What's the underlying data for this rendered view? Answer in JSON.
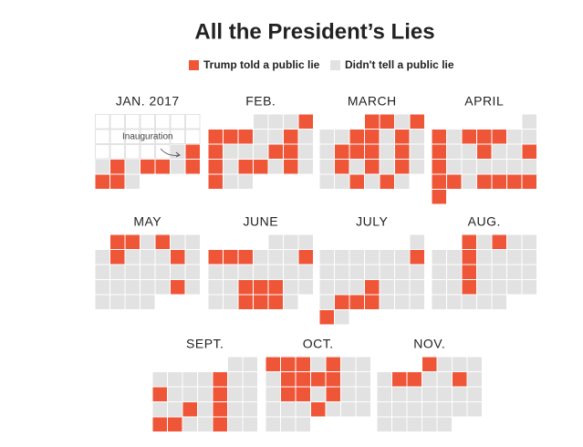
{
  "chart_data": {
    "type": "calendar",
    "title": "All the President’s Lies",
    "legend": [
      {
        "label": "Trump told a public lie",
        "color": "#ef5638"
      },
      {
        "label": "Didn't tell a public lie",
        "color": "#e2e2e2"
      }
    ],
    "annotation": "Inauguration",
    "months": [
      {
        "label": "JAN. 2017",
        "start_weekday": 0,
        "days": [
          null,
          null,
          null,
          null,
          null,
          null,
          null,
          null,
          null,
          null,
          null,
          null,
          null,
          null,
          null,
          null,
          null,
          null,
          null,
          0,
          1,
          0,
          1,
          0,
          1,
          1,
          0,
          1,
          1,
          1,
          0
        ]
      },
      {
        "label": "FEB.",
        "start_weekday": 3,
        "days": [
          0,
          0,
          0,
          1,
          1,
          1,
          1,
          0,
          0,
          1,
          0,
          1,
          0,
          0,
          0,
          1,
          1,
          0,
          1,
          0,
          1,
          1,
          0,
          1,
          0,
          1,
          0,
          0
        ]
      },
      {
        "label": "MARCH",
        "start_weekday": 3,
        "days": [
          1,
          1,
          0,
          1,
          0,
          0,
          1,
          1,
          0,
          1,
          0,
          0,
          1,
          1,
          1,
          0,
          1,
          0,
          0,
          1,
          0,
          1,
          0,
          1,
          0,
          0,
          0,
          1,
          0,
          1,
          0
        ]
      },
      {
        "label": "APRIL",
        "start_weekday": 6,
        "days": [
          0,
          1,
          0,
          1,
          1,
          1,
          0,
          0,
          1,
          0,
          0,
          1,
          0,
          0,
          1,
          1,
          0,
          0,
          0,
          0,
          0,
          0,
          1,
          1,
          0,
          1,
          1,
          1,
          1,
          1
        ]
      },
      {
        "label": "MAY",
        "start_weekday": 1,
        "days": [
          1,
          1,
          0,
          1,
          0,
          0,
          0,
          1,
          0,
          0,
          0,
          1,
          0,
          0,
          0,
          0,
          0,
          0,
          0,
          0,
          0,
          0,
          0,
          0,
          0,
          1,
          0,
          0,
          0,
          0,
          0
        ]
      },
      {
        "label": "JUNE",
        "start_weekday": 4,
        "days": [
          0,
          0,
          0,
          1,
          1,
          1,
          0,
          0,
          0,
          1,
          0,
          0,
          0,
          0,
          0,
          0,
          0,
          0,
          0,
          1,
          1,
          1,
          0,
          0,
          0,
          0,
          1,
          1,
          1,
          0
        ]
      },
      {
        "label": "JULY",
        "start_weekday": 6,
        "days": [
          0,
          0,
          0,
          0,
          0,
          0,
          0,
          1,
          0,
          0,
          0,
          0,
          0,
          0,
          0,
          0,
          0,
          0,
          1,
          0,
          0,
          0,
          0,
          1,
          1,
          1,
          0,
          0,
          0,
          1,
          0
        ]
      },
      {
        "label": "AUG.",
        "start_weekday": 2,
        "days": [
          1,
          0,
          1,
          0,
          0,
          0,
          0,
          1,
          0,
          0,
          0,
          0,
          0,
          0,
          1,
          0,
          0,
          0,
          0,
          0,
          0,
          1,
          0,
          0,
          0,
          0,
          0,
          0,
          0,
          0,
          0
        ]
      },
      {
        "label": "SEPT.",
        "start_weekday": 5,
        "days": [
          0,
          0,
          0,
          0,
          0,
          0,
          1,
          0,
          0,
          1,
          0,
          0,
          0,
          1,
          0,
          0,
          0,
          0,
          1,
          0,
          1,
          0,
          0,
          1,
          1,
          0,
          0,
          1,
          0,
          0
        ]
      },
      {
        "label": "OCT.",
        "start_weekday": 0,
        "days": [
          1,
          1,
          1,
          0,
          1,
          0,
          0,
          0,
          1,
          1,
          1,
          1,
          0,
          0,
          0,
          1,
          1,
          0,
          1,
          0,
          0,
          0,
          0,
          0,
          1,
          0,
          0,
          0,
          0,
          0,
          0
        ]
      },
      {
        "label": "NOV.",
        "start_weekday": 3,
        "days": [
          1,
          0,
          0,
          0,
          0,
          1,
          1,
          0,
          0,
          1,
          0,
          0,
          0,
          0,
          0,
          0,
          0,
          0,
          0,
          0,
          0,
          0,
          0,
          0,
          0,
          0,
          0,
          0,
          0,
          0
        ]
      }
    ]
  }
}
